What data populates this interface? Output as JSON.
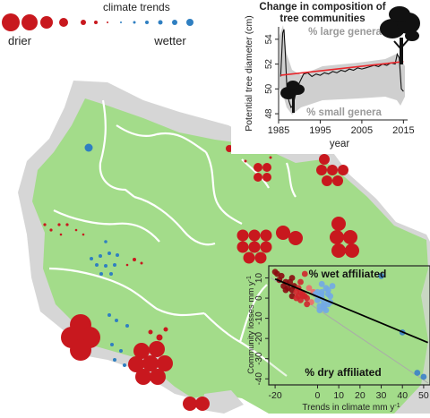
{
  "legend": {
    "title": "climate trends",
    "drier_label": "drier",
    "wetter_label": "wetter"
  },
  "colors": {
    "drier": "#c8181e",
    "wetter": "#2f7fc1",
    "forest": "#a3dc8a",
    "land": "#d6d6d6",
    "border": "#ffffff",
    "trend_line": "#e8262b",
    "fit_line": "#000000"
  },
  "inset_top": {
    "title_line1": "Change in composition of",
    "title_line2": "tree communities",
    "ylabel": "Potential tree diameter (cm)",
    "xlabel": "year",
    "label_large": "% large genera",
    "label_small": "% small genera",
    "x_ticks": [
      "1985",
      "1995",
      "2005",
      "2015"
    ],
    "y_ticks": [
      "48",
      "50",
      "52",
      "54"
    ]
  },
  "inset_bottom": {
    "label_wet": "% wet affiliated",
    "label_dry": "% dry affiliated",
    "ylabel": "Community losses mm y",
    "ylabel_sup": "-1",
    "xlabel": "Trends in climate mm y",
    "xlabel_sup": "-1",
    "x_ticks": [
      "-20",
      "0",
      "10",
      "20",
      "30",
      "40",
      "50"
    ],
    "y_ticks": [
      "10",
      "0",
      "-10",
      "-20",
      "-30",
      "-40"
    ]
  },
  "chart_data": [
    {
      "type": "line",
      "title": "Change in composition of tree communities",
      "xlabel": "year",
      "ylabel": "Potential tree diameter (cm)",
      "xlim": [
        1985,
        2016
      ],
      "ylim": [
        47.5,
        55
      ],
      "series": [
        {
          "x": [
            1985.5,
            1986,
            1986.3,
            1986.6,
            1987,
            1987.5,
            1988,
            1988.5,
            1989,
            1990,
            1991,
            1992,
            1993,
            1994,
            1995,
            1996,
            1997,
            1998,
            1999,
            2000,
            2001,
            2002,
            2003,
            2004,
            2005,
            2006,
            2007,
            2008,
            2009,
            2010,
            2011,
            2012,
            2013,
            2013.5,
            2014,
            2014.5,
            2015
          ],
          "y": [
            51.0,
            54.5,
            54.8,
            53.0,
            50.0,
            49.0,
            48.5,
            48.7,
            49.5,
            50.5,
            51.2,
            51.3,
            51.0,
            51.2,
            51.1,
            51.3,
            51.2,
            51.4,
            51.3,
            51.5,
            51.4,
            51.6,
            51.5,
            51.7,
            51.6,
            51.7,
            51.8,
            51.9,
            51.8,
            52.0,
            51.9,
            52.1,
            52.0,
            52.8,
            52.5,
            50.0,
            49.8
          ]
        },
        {
          "x": [
            1985.5,
            2015
          ],
          "y": [
            51.1,
            52.2
          ]
        }
      ]
    },
    {
      "type": "scatter",
      "xlabel": "Trends in climate mm y-1",
      "ylabel": "Community losses mm y-1",
      "xlim": [
        -23,
        53
      ],
      "ylim": [
        -43,
        16
      ],
      "series": [
        {
          "x": [
            -20,
            -19,
            -18,
            -17,
            -16,
            -15,
            -14,
            -13,
            -12,
            -12,
            -11,
            -10,
            -10,
            -9,
            -9,
            -8,
            -8,
            -7,
            -6,
            -5,
            -12,
            -8,
            -6,
            -15,
            -4,
            -2,
            -1,
            -3,
            -5,
            -7
          ],
          "y": [
            13,
            12,
            9,
            11,
            6,
            8,
            5,
            8,
            4,
            1,
            6,
            3,
            0,
            5,
            1,
            3,
            -1,
            2,
            1,
            0,
            10,
            8,
            12,
            4,
            5,
            3,
            2,
            -2,
            -3,
            1
          ]
        },
        {
          "x": [
            -1,
            0,
            1,
            2,
            2,
            3,
            4,
            5,
            5,
            6,
            7,
            3,
            1,
            0,
            2,
            4,
            6,
            30,
            40,
            47,
            50,
            2,
            3,
            1,
            5
          ],
          "y": [
            2,
            -1,
            1,
            3,
            0,
            -2,
            5,
            4,
            -3,
            1,
            6,
            -5,
            -4,
            3,
            2,
            -6,
            -2,
            11,
            -17,
            -37,
            -39,
            7,
            -4,
            -6,
            2
          ]
        },
        {
          "x": [
            -20,
            52
          ],
          "y": [
            9.5,
            -22
          ]
        }
      ]
    }
  ]
}
